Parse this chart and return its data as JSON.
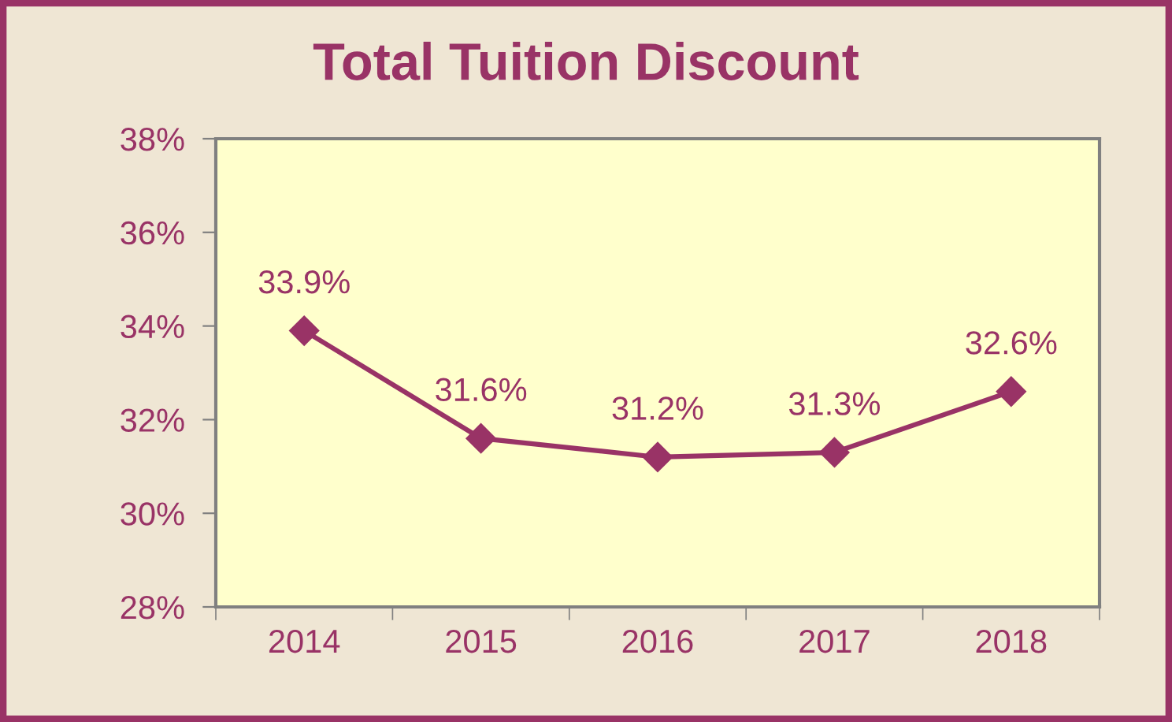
{
  "chart_data": {
    "type": "line",
    "title": "Total Tuition Discount",
    "categories": [
      "2014",
      "2015",
      "2016",
      "2017",
      "2018"
    ],
    "series": [
      {
        "color": "#993366",
        "values": [
          33.9,
          31.6,
          31.2,
          31.3,
          32.6
        ],
        "value_labels": [
          "33.9%",
          "31.6%",
          "31.2%",
          "31.3%",
          "32.6%"
        ]
      }
    ],
    "ylim": [
      28,
      38
    ],
    "yticks": [
      {
        "value": 28,
        "label": "28%"
      },
      {
        "value": 30,
        "label": "30%"
      },
      {
        "value": 32,
        "label": "32%"
      },
      {
        "value": 34,
        "label": "34%"
      },
      {
        "value": 36,
        "label": "36%"
      },
      {
        "value": 38,
        "label": "38%"
      }
    ],
    "marker": "diamond",
    "line_style": "solid",
    "grid": false,
    "legend": false
  }
}
